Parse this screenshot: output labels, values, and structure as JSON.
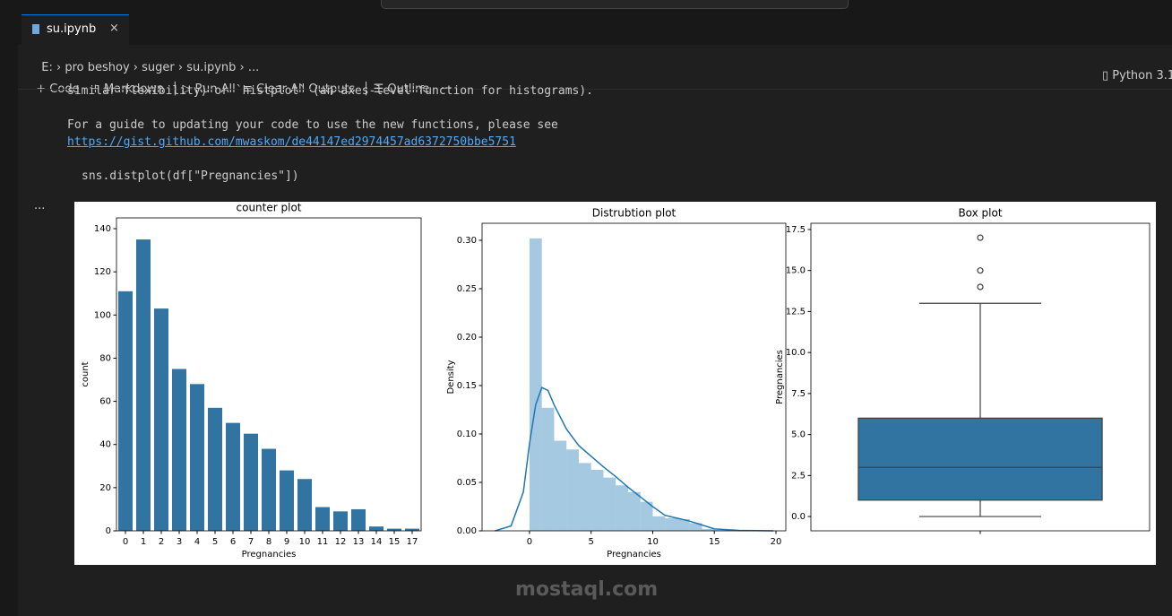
{
  "window": {
    "tab": "su.ipynb",
    "breadcrumbs": [
      "E:",
      "pro beshoy",
      "suger",
      "su.ipynb",
      "..."
    ],
    "toolbar": [
      "Code",
      "Markdown",
      "Run All",
      "Clear All Outputs",
      "Outline",
      "···"
    ],
    "kernel": "Python 3.1"
  },
  "output": {
    "lines": [
      "similar flexibility) or `histplot` (an axes-level function for histograms).",
      "For a guide to updating your code to use the new functions, please see"
    ],
    "link": "https://gist.github.com/mwaskom/de44147ed2974457ad6372750bbe5751",
    "code": "sns.distplot(df[\"Pregnancies\"])",
    "more": "..."
  },
  "watermark": "mostaql.com",
  "chart_data": [
    {
      "type": "bar",
      "title": "counter plot",
      "xlabel": "Pregnancies",
      "ylabel": "count",
      "color": "#3274a1",
      "categories": [
        "0",
        "1",
        "2",
        "3",
        "4",
        "5",
        "6",
        "7",
        "8",
        "9",
        "10",
        "11",
        "12",
        "13",
        "14",
        "15",
        "17"
      ],
      "values": [
        111,
        135,
        103,
        75,
        68,
        57,
        50,
        45,
        38,
        28,
        24,
        11,
        9,
        10,
        2,
        1,
        1
      ],
      "ylim": [
        0,
        145
      ],
      "yticks": [
        0,
        20,
        40,
        60,
        80,
        100,
        120,
        140
      ]
    },
    {
      "type": "histogram",
      "title": "Distrubtion plot",
      "xlabel": "Pregnancies",
      "ylabel": "Density",
      "color": "#1f77b4",
      "bins": [
        0,
        1,
        2,
        3,
        4,
        5,
        6,
        7,
        8,
        9,
        10,
        11,
        12,
        13,
        14,
        15,
        16,
        17
      ],
      "values": [
        0.302,
        0.127,
        0.093,
        0.084,
        0.07,
        0.063,
        0.055,
        0.047,
        0.04,
        0.03,
        0.015,
        0.013,
        0.012,
        0.008,
        0.002,
        0.001,
        0.001
      ],
      "line": {
        "color": "#1f77b4",
        "x": [
          -2.8,
          -1.5,
          -0.5,
          0,
          0.5,
          1,
          1.5,
          2,
          3,
          4,
          5,
          6,
          7,
          8,
          9,
          10,
          11,
          12,
          13,
          14,
          15,
          17,
          19.8
        ],
        "values": [
          0,
          0.005,
          0.04,
          0.09,
          0.13,
          0.148,
          0.145,
          0.13,
          0.105,
          0.088,
          0.077,
          0.066,
          0.056,
          0.045,
          0.035,
          0.025,
          0.016,
          0.013,
          0.01,
          0.006,
          0.002,
          0.0005,
          0
        ]
      },
      "xlim": [
        -3.85,
        20.8
      ],
      "xticks": [
        0,
        5,
        10,
        15,
        20
      ],
      "ylim": [
        0,
        0.3176
      ],
      "yticks": [
        {
          "value": 0,
          "label": "0.00"
        },
        0.05,
        {
          "value": 0.1,
          "label": "0.10"
        },
        0.15,
        {
          "value": 0.2,
          "label": "0.20"
        },
        0.25,
        {
          "value": 0.3,
          "label": "0.30"
        }
      ]
    },
    {
      "type": "box",
      "title": "Box plot",
      "ylabel": "Pregnancies",
      "color": "#3274a1",
      "box": {
        "whislo": 0,
        "q1": 1,
        "median": 3,
        "q3": 6,
        "whishi": 13
      },
      "outliers": [
        14,
        15,
        17
      ],
      "ylim": [
        -0.87,
        17.88
      ],
      "yticks": [
        {
          "value": 0,
          "label": "0.0"
        },
        2.5,
        {
          "value": 5,
          "label": "5.0"
        },
        7.5,
        {
          "value": 10,
          "label": "10.0"
        },
        12.5,
        {
          "value": 15,
          "label": "15.0"
        },
        17.5
      ]
    }
  ]
}
